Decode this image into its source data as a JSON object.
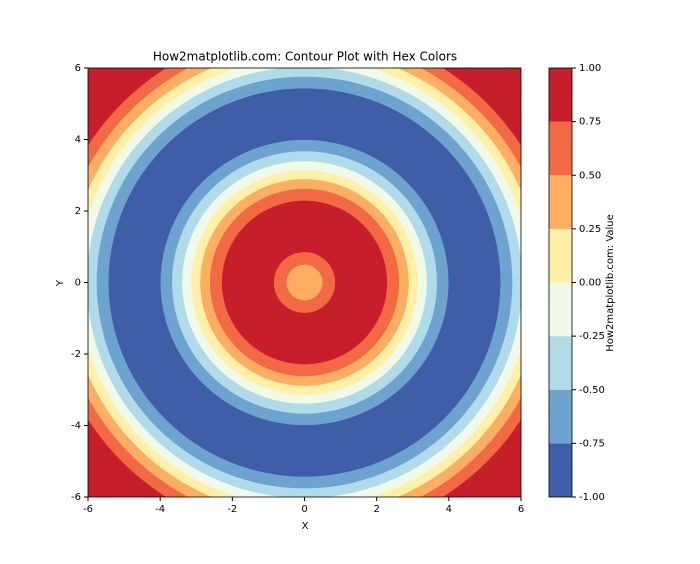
{
  "chart_data": {
    "type": "contour",
    "title": "How2matplotlib.com: Contour Plot with Hex Colors",
    "x_label": "X",
    "y_label": "Y",
    "colorbar_label": "How2matplotlib.com: Value",
    "xlim": [
      -6,
      6
    ],
    "ylim": [
      -6,
      6
    ],
    "xticks": [
      -6,
      -4,
      -2,
      0,
      2,
      4,
      6
    ],
    "yticks": [
      -6,
      -4,
      -2,
      0,
      2,
      4,
      6
    ],
    "colors": [
      "#3f5ea8",
      "#6ca3cf",
      "#b0dcea",
      "#f1f9e8",
      "#fff0a8",
      "#fdae61",
      "#f16a43",
      "#c61e2a"
    ],
    "clim": [
      -1,
      1
    ],
    "cticks": [
      {
        "value": -1,
        "label": "-1.00"
      },
      {
        "value": -0.75,
        "label": "-0.75"
      },
      {
        "value": -0.5,
        "label": "-0.50"
      },
      {
        "value": -0.25,
        "label": "-0.25"
      },
      {
        "value": 0,
        "label": "0.00"
      },
      {
        "value": 0.25,
        "label": "0.25"
      },
      {
        "value": 0.5,
        "label": "0.50"
      },
      {
        "value": 0.75,
        "label": "0.75"
      },
      {
        "value": 1,
        "label": "1.00"
      }
    ],
    "rings": [
      {
        "r": 8.5,
        "band": 7
      },
      {
        "r": 7.12,
        "band": 6
      },
      {
        "r": 6.81,
        "band": 5
      },
      {
        "r": 6.53,
        "band": 4
      },
      {
        "r": 6.28,
        "band": 3
      },
      {
        "r": 6.03,
        "band": 2
      },
      {
        "r": 5.76,
        "band": 1
      },
      {
        "r": 5.43,
        "band": 0
      },
      {
        "r": 3.99,
        "band": 1
      },
      {
        "r": 3.67,
        "band": 2
      },
      {
        "r": 3.39,
        "band": 3
      },
      {
        "r": 3.14,
        "band": 4
      },
      {
        "r": 2.89,
        "band": 5
      },
      {
        "r": 2.62,
        "band": 6
      },
      {
        "r": 2.29,
        "band": 7
      },
      {
        "r": 0.85,
        "band": 6
      },
      {
        "r": 0.5,
        "band": 5
      }
    ]
  }
}
